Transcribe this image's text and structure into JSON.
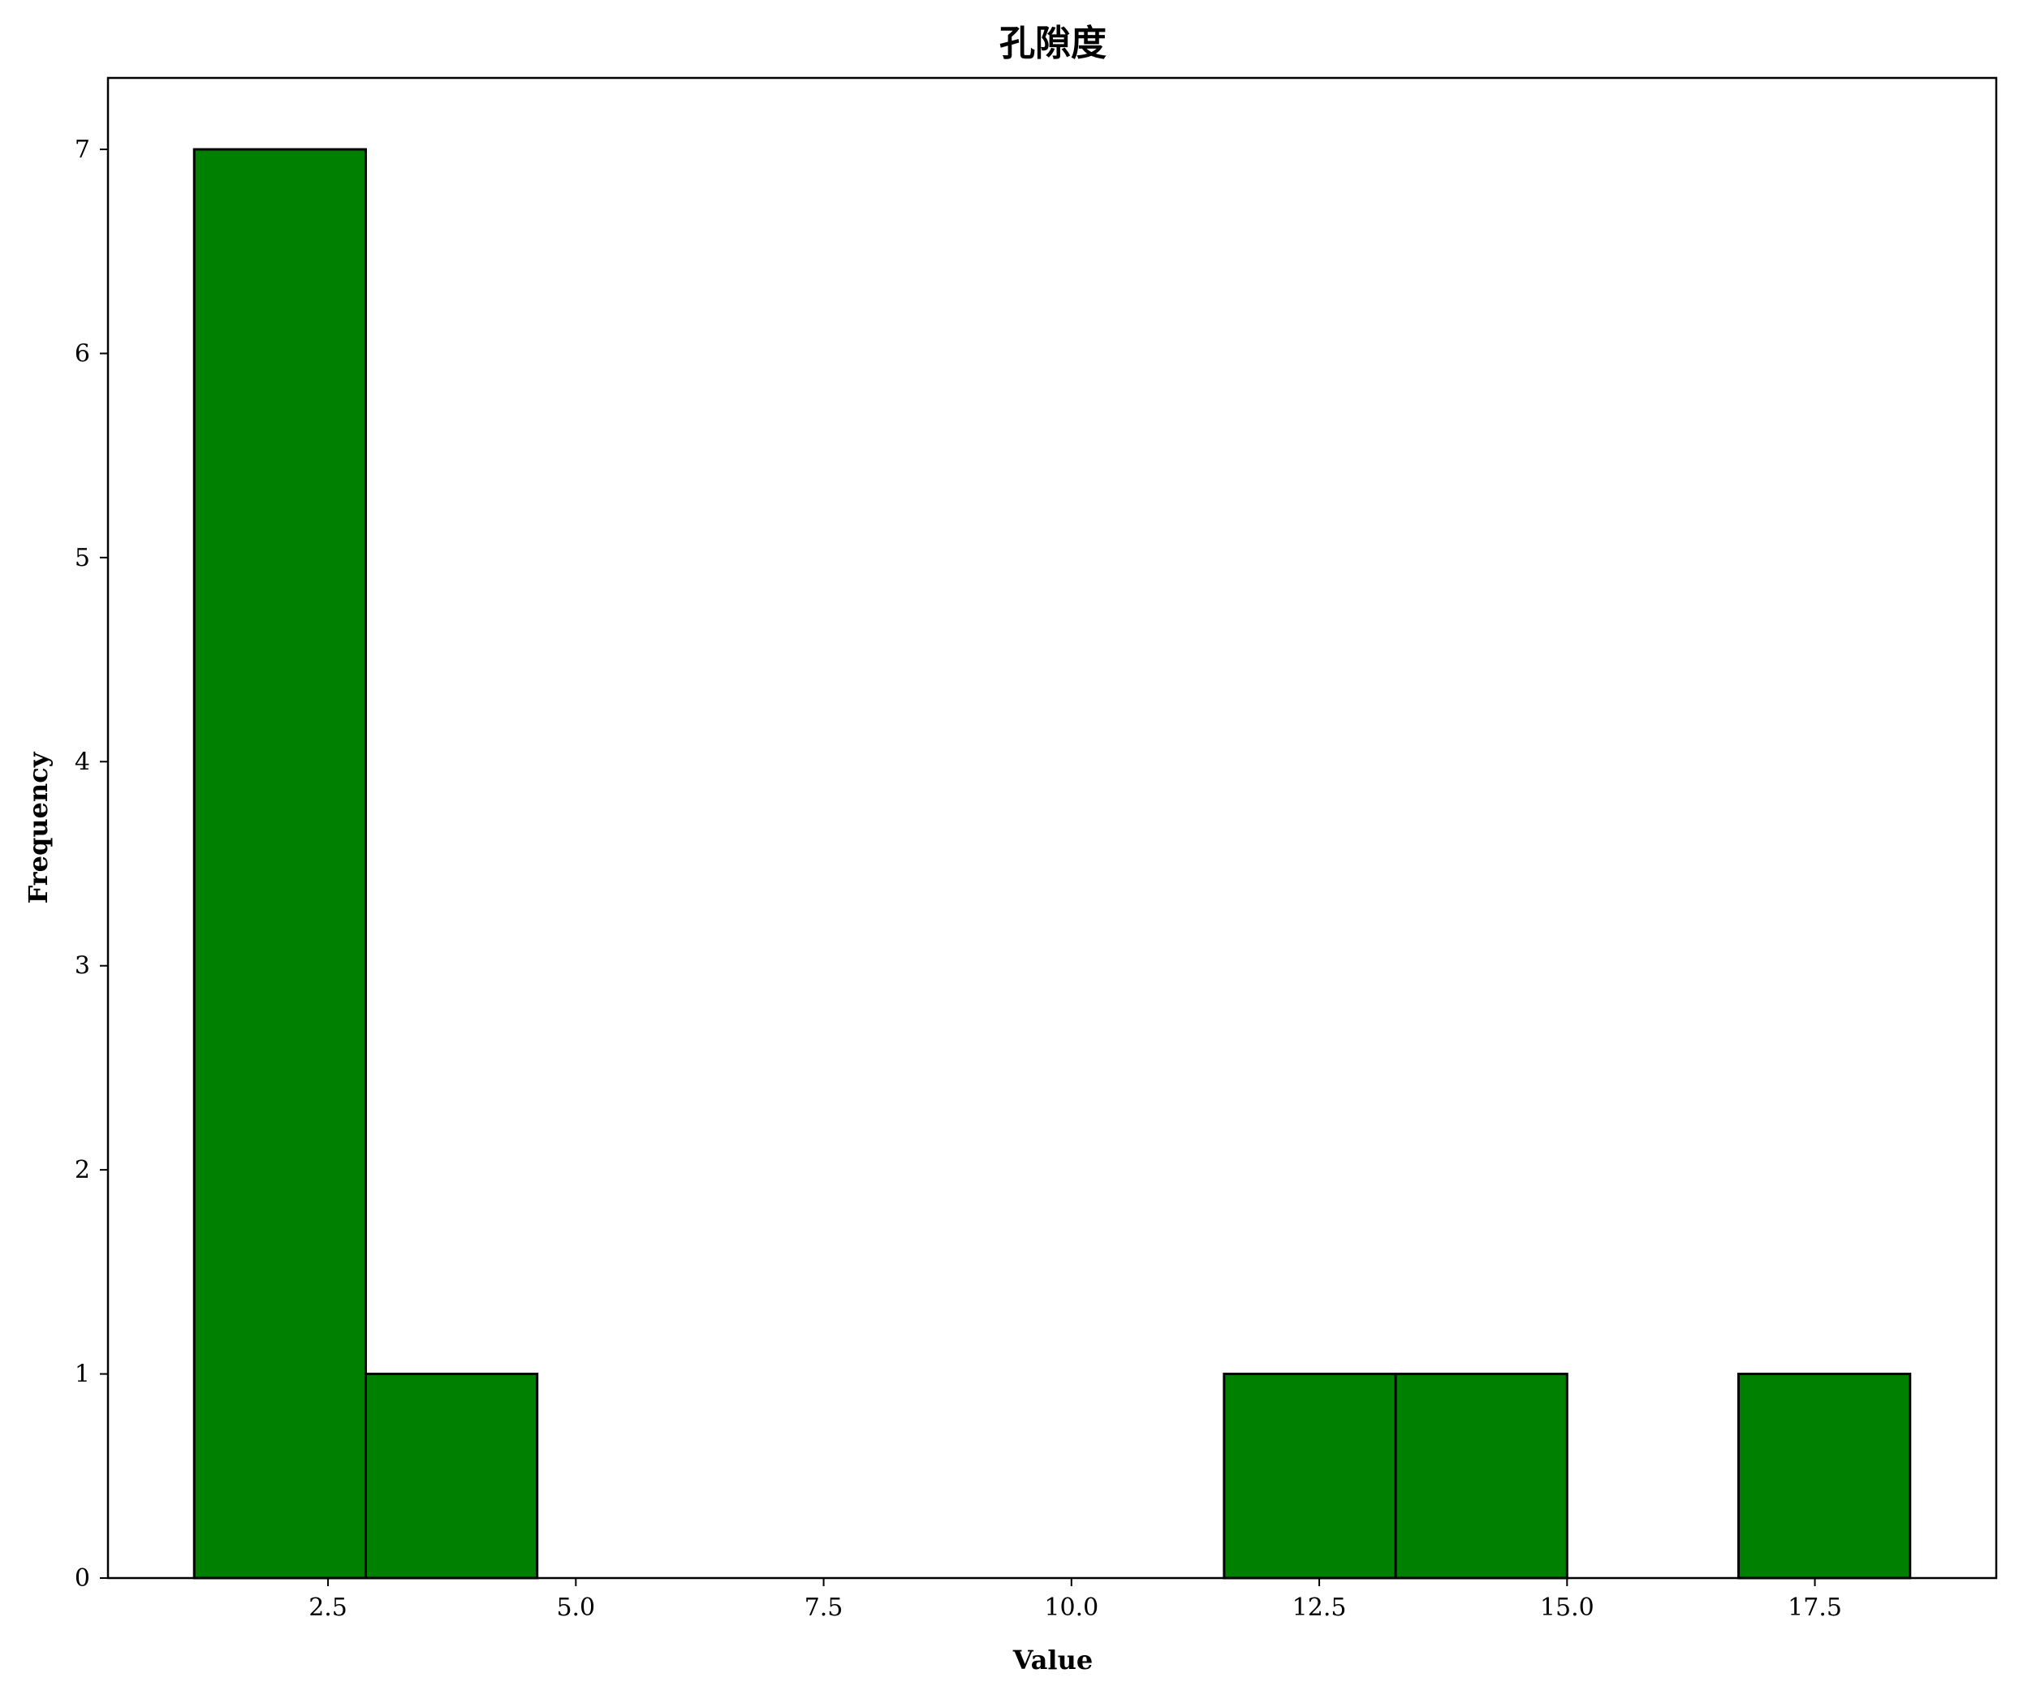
{
  "chart_data": {
    "type": "bar",
    "title": "孔隙度",
    "xlabel": "Value",
    "ylabel": "Frequency",
    "bins": [
      {
        "x0": 1.15,
        "x1": 2.88,
        "count": 7
      },
      {
        "x0": 2.88,
        "x1": 4.61,
        "count": 1
      },
      {
        "x0": 4.61,
        "x1": 6.34,
        "count": 0
      },
      {
        "x0": 6.34,
        "x1": 8.07,
        "count": 0
      },
      {
        "x0": 8.07,
        "x1": 9.81,
        "count": 0
      },
      {
        "x0": 9.81,
        "x1": 11.54,
        "count": 0
      },
      {
        "x0": 11.54,
        "x1": 13.27,
        "count": 1
      },
      {
        "x0": 13.27,
        "x1": 15.0,
        "count": 1
      },
      {
        "x0": 15.0,
        "x1": 16.73,
        "count": 0
      },
      {
        "x0": 16.73,
        "x1": 18.46,
        "count": 1
      }
    ],
    "xticks": [
      2.5,
      5.0,
      7.5,
      10.0,
      12.5,
      15.0,
      17.5
    ],
    "xtick_labels": [
      "2.5",
      "5.0",
      "7.5",
      "10.0",
      "12.5",
      "15.0",
      "17.5"
    ],
    "yticks": [
      0,
      1,
      2,
      3,
      4,
      5,
      6,
      7
    ],
    "ytick_labels": [
      "0",
      "1",
      "2",
      "3",
      "4",
      "5",
      "6",
      "7"
    ],
    "xlim": [
      0.28,
      19.33
    ],
    "ylim": [
      0,
      7.35
    ],
    "grid": false,
    "bar_color": "#008000",
    "edge_color": "#000000"
  }
}
